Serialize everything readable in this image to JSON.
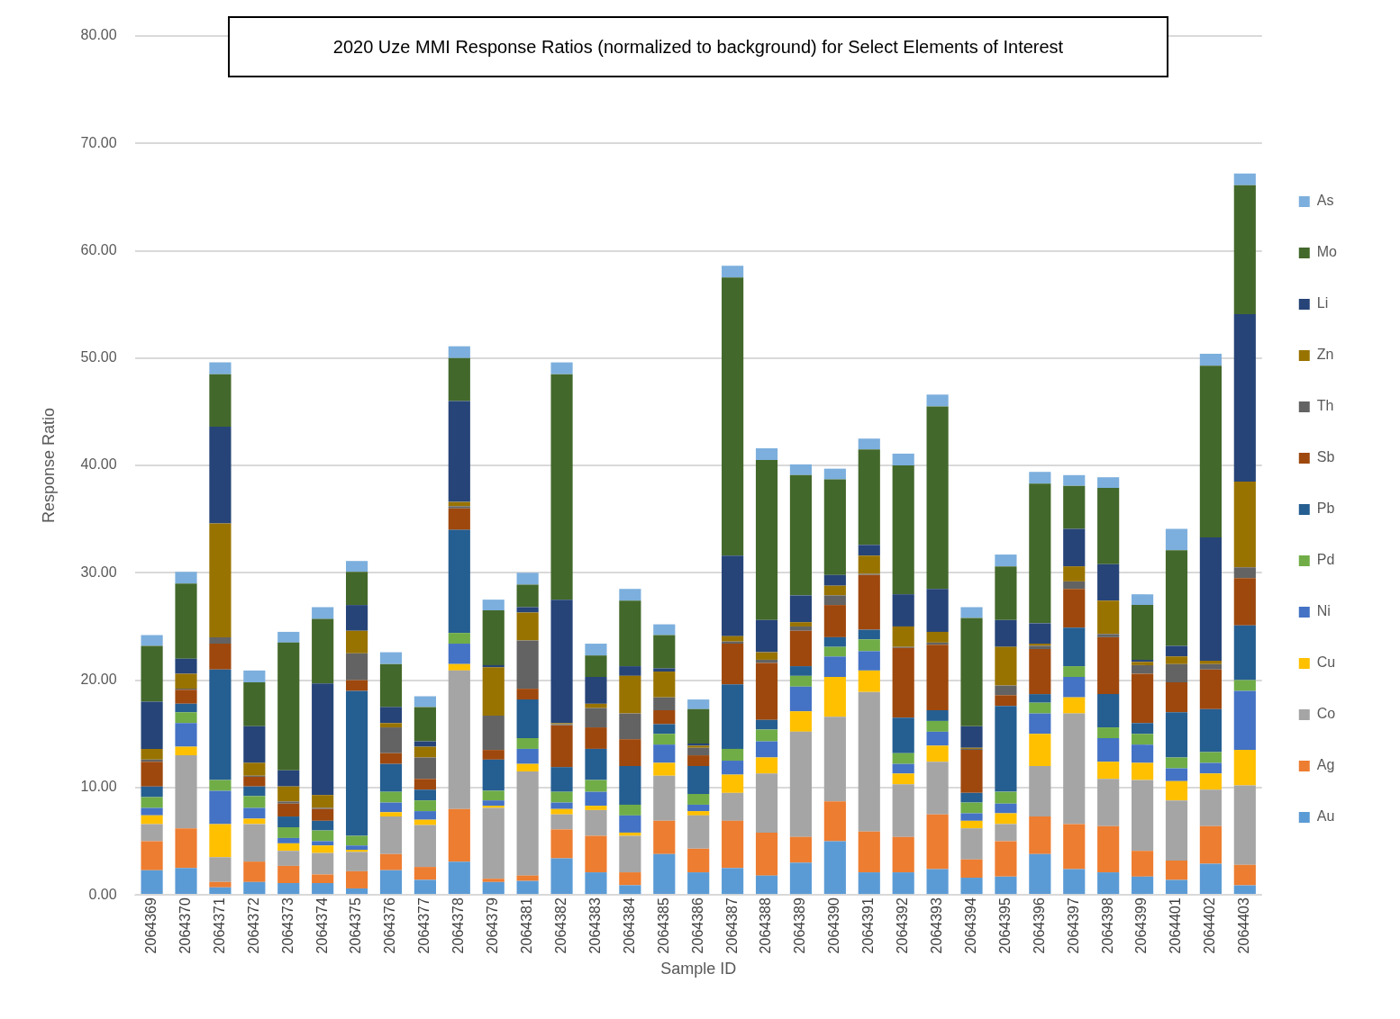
{
  "chart_data": {
    "type": "bar",
    "stacked": true,
    "title": "2020 Uze MMI Response Ratios (normalized to background) for Select Elements of Interest",
    "xlabel": "Sample ID",
    "ylabel": "Response Ratio",
    "categories": [
      "2064369",
      "2064370",
      "2064371",
      "2064372",
      "2064373",
      "2064374",
      "2064375",
      "2064376",
      "2064377",
      "2064378",
      "2064379",
      "2064381",
      "2064382",
      "2064383",
      "2064384",
      "2064385",
      "2064386",
      "2064387",
      "2064388",
      "2064389",
      "2064390",
      "2064391",
      "2064392",
      "2064393",
      "2064394",
      "2064395",
      "2064396",
      "2064397",
      "2064398",
      "2064399",
      "2064401",
      "2064402",
      "2064403"
    ],
    "ylim": [
      0,
      80
    ],
    "yticks": [
      {
        "value": 0,
        "label": "0.00"
      },
      {
        "value": 10,
        "label": "10.00"
      },
      {
        "value": 20,
        "label": "20.00"
      },
      {
        "value": 30,
        "label": "30.00"
      },
      {
        "value": 40,
        "label": "40.00"
      },
      {
        "value": 50,
        "label": "50.00"
      },
      {
        "value": 60,
        "label": "60.00"
      },
      {
        "value": 70,
        "label": "70.00"
      },
      {
        "value": 80,
        "label": "80.00"
      }
    ],
    "grid": "y",
    "legend": "right",
    "series": [
      {
        "name": "Au",
        "color": "#5b9bd5",
        "values": [
          2.3,
          2.5,
          0.7,
          1.2,
          1.1,
          1.1,
          0.6,
          2.3,
          1.4,
          3.1,
          1.2,
          1.3,
          3.4,
          2.1,
          0.9,
          3.8,
          2.1,
          2.5,
          1.8,
          3.0,
          5.0,
          2.1,
          2.1,
          2.4,
          1.6,
          1.7,
          3.8,
          2.4,
          2.1,
          1.7,
          1.4,
          2.9,
          0.9
        ]
      },
      {
        "name": "Ag",
        "color": "#ed7d31",
        "values": [
          2.7,
          3.7,
          0.5,
          1.9,
          1.6,
          0.8,
          1.6,
          1.5,
          1.2,
          4.9,
          0.3,
          0.5,
          2.7,
          3.4,
          1.2,
          3.1,
          2.2,
          4.4,
          4.0,
          2.4,
          3.7,
          3.8,
          3.3,
          5.1,
          1.7,
          3.3,
          3.5,
          4.2,
          4.3,
          2.4,
          1.8,
          3.5,
          1.9
        ]
      },
      {
        "name": "Co",
        "color": "#a5a5a5",
        "values": [
          1.6,
          6.8,
          2.3,
          3.5,
          1.4,
          2.0,
          1.8,
          3.5,
          3.9,
          12.9,
          6.6,
          9.7,
          1.4,
          2.4,
          3.4,
          4.2,
          3.1,
          2.6,
          5.5,
          9.8,
          7.9,
          13.0,
          4.9,
          4.9,
          2.9,
          1.6,
          4.7,
          10.3,
          4.4,
          6.6,
          5.6,
          3.4,
          7.4
        ]
      },
      {
        "name": "Cu",
        "color": "#ffc000",
        "values": [
          0.8,
          0.8,
          3.1,
          0.5,
          0.7,
          0.7,
          0.2,
          0.4,
          0.5,
          0.6,
          0.2,
          0.7,
          0.5,
          0.4,
          0.3,
          1.2,
          0.4,
          1.7,
          1.5,
          1.9,
          3.7,
          2.0,
          1.0,
          1.5,
          0.7,
          1.0,
          3.0,
          1.5,
          1.6,
          1.6,
          1.8,
          1.5,
          3.3
        ]
      },
      {
        "name": "Ni",
        "color": "#4472c4",
        "values": [
          0.7,
          2.2,
          3.1,
          1.0,
          0.5,
          0.4,
          0.4,
          0.9,
          0.8,
          1.9,
          0.5,
          1.4,
          0.6,
          1.3,
          1.6,
          1.7,
          0.6,
          1.3,
          1.5,
          2.3,
          1.9,
          1.8,
          0.9,
          1.3,
          0.7,
          0.9,
          1.9,
          1.9,
          2.2,
          1.7,
          1.2,
          1.0,
          5.5
        ]
      },
      {
        "name": "Pd",
        "color": "#70ad47",
        "values": [
          1.0,
          1.0,
          1.0,
          1.1,
          1.0,
          1.0,
          0.9,
          1.0,
          1.0,
          1.0,
          0.9,
          1.0,
          1.0,
          1.1,
          1.0,
          1.0,
          1.0,
          1.1,
          1.1,
          1.0,
          0.9,
          1.1,
          1.0,
          1.0,
          1.0,
          1.1,
          1.0,
          1.0,
          1.0,
          1.0,
          1.0,
          1.0,
          1.0
        ]
      },
      {
        "name": "Pb",
        "color": "#255e91",
        "values": [
          1.0,
          0.8,
          10.3,
          0.9,
          1.0,
          0.9,
          13.5,
          2.6,
          1.0,
          9.6,
          2.9,
          3.6,
          2.3,
          2.9,
          3.6,
          0.9,
          2.6,
          6.0,
          0.9,
          0.9,
          0.9,
          0.9,
          3.3,
          1.0,
          0.9,
          8.0,
          0.8,
          3.6,
          3.1,
          1.0,
          4.2,
          4.0,
          5.1
        ]
      },
      {
        "name": "Sb",
        "color": "#9e480e",
        "values": [
          2.3,
          1.3,
          2.4,
          0.9,
          1.2,
          1.1,
          1.0,
          1.0,
          1.0,
          2.0,
          0.9,
          1.0,
          3.9,
          2.0,
          2.5,
          1.3,
          1.0,
          3.8,
          5.3,
          3.3,
          3.0,
          5.1,
          6.5,
          6.1,
          4.0,
          1.0,
          4.2,
          3.6,
          5.3,
          4.6,
          2.8,
          3.7,
          4.4
        ]
      },
      {
        "name": "Th",
        "color": "#636363",
        "values": [
          0.2,
          0.1,
          0.6,
          0.1,
          0.2,
          0.1,
          2.5,
          2.4,
          2.0,
          0.2,
          3.2,
          4.5,
          0.1,
          1.8,
          2.4,
          1.2,
          0.7,
          0.2,
          0.3,
          0.4,
          0.9,
          0.1,
          0.1,
          0.2,
          0.1,
          0.9,
          0.3,
          0.7,
          0.3,
          0.8,
          1.7,
          0.5,
          1.0
        ]
      },
      {
        "name": "Zn",
        "color": "#997300",
        "values": [
          1.0,
          1.4,
          10.6,
          1.2,
          1.4,
          1.2,
          2.1,
          0.4,
          1.0,
          0.4,
          4.5,
          2.6,
          0.1,
          0.4,
          3.5,
          2.4,
          0.2,
          0.5,
          0.7,
          0.4,
          0.9,
          1.7,
          1.9,
          1.0,
          0.1,
          3.6,
          0.2,
          1.4,
          3.1,
          0.3,
          0.7,
          0.3,
          8.0
        ]
      },
      {
        "name": "Li",
        "color": "#264478",
        "values": [
          4.4,
          1.4,
          9.0,
          3.4,
          1.5,
          10.4,
          2.4,
          1.5,
          0.5,
          9.4,
          0.2,
          0.5,
          11.5,
          2.5,
          0.9,
          0.3,
          0.2,
          7.5,
          3.0,
          2.5,
          1.0,
          1.0,
          3.0,
          4.0,
          2.0,
          2.5,
          1.9,
          3.5,
          3.4,
          0.2,
          1.0,
          11.5,
          15.6
        ]
      },
      {
        "name": "Mo",
        "color": "#43682b",
        "values": [
          5.2,
          7.0,
          4.9,
          4.1,
          11.9,
          6.0,
          3.1,
          4.0,
          3.2,
          4.0,
          5.1,
          2.1,
          21.0,
          2.0,
          6.1,
          3.1,
          3.2,
          25.9,
          14.9,
          11.2,
          8.9,
          8.9,
          12.0,
          17.0,
          10.1,
          5.0,
          13.0,
          4.0,
          7.1,
          5.1,
          8.9,
          16.0,
          12.0
        ]
      },
      {
        "name": "As",
        "color": "#7cafdd",
        "values": [
          1.0,
          1.1,
          1.1,
          1.1,
          1.0,
          1.1,
          1.0,
          1.1,
          1.0,
          1.1,
          1.0,
          1.1,
          1.1,
          1.1,
          1.1,
          1.0,
          0.9,
          1.1,
          1.1,
          1.0,
          1.0,
          1.0,
          1.1,
          1.1,
          1.0,
          1.1,
          1.1,
          1.0,
          1.0,
          1.0,
          2.0,
          1.1,
          1.1
        ]
      }
    ]
  }
}
